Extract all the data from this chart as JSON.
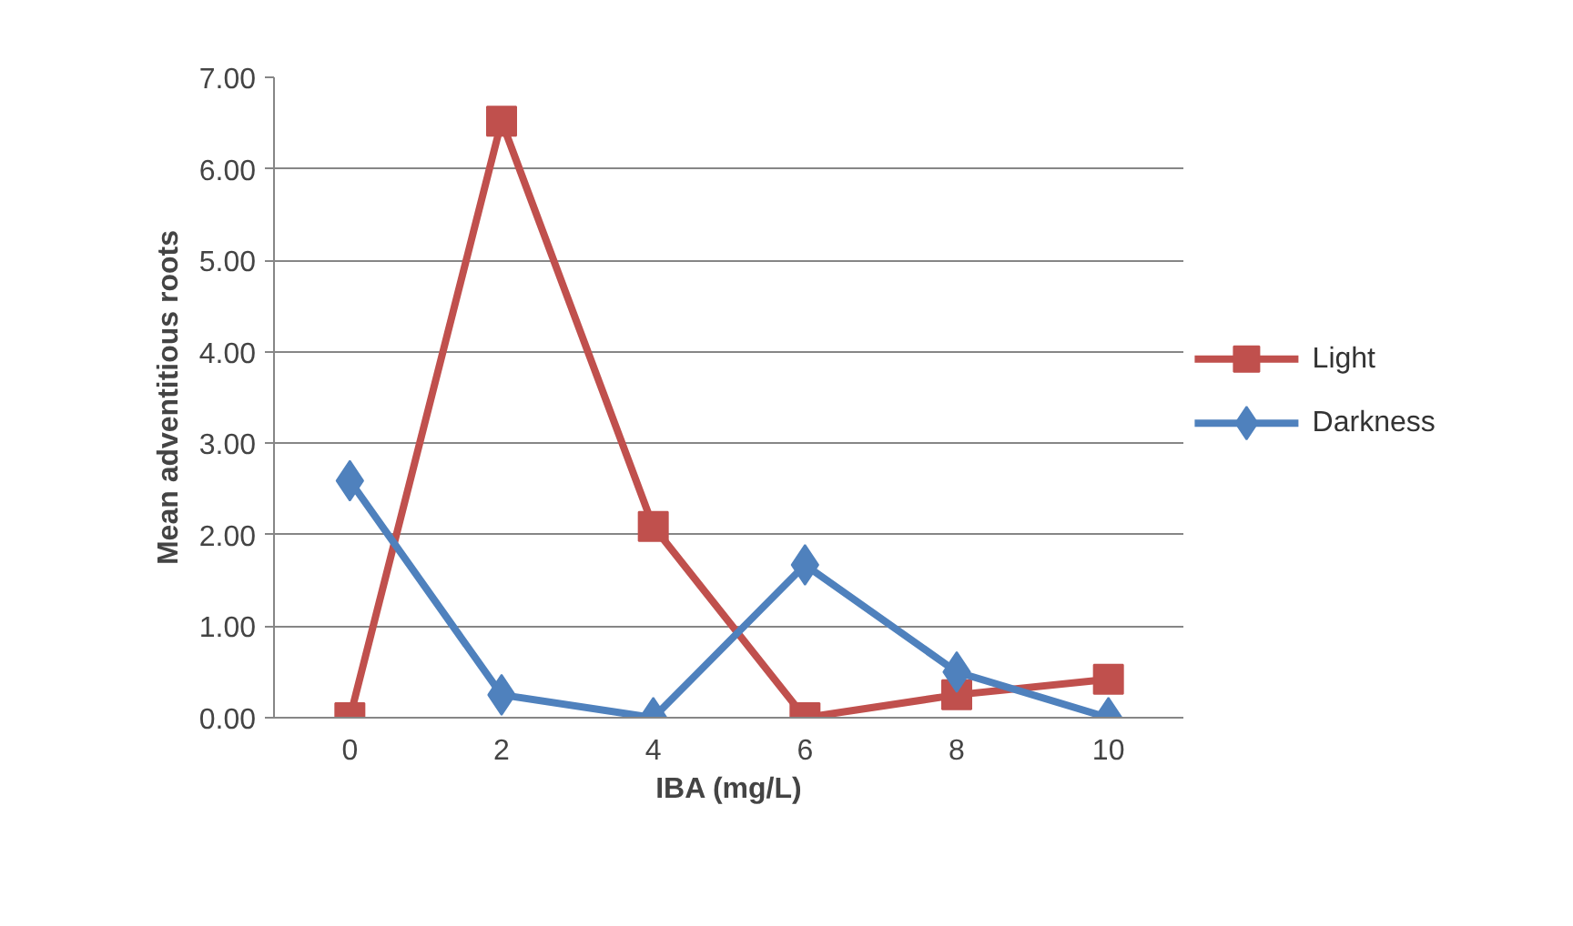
{
  "chart_data": {
    "type": "line",
    "xlabel": "IBA (mg/L)",
    "ylabel": "Mean adventitious roots",
    "categories": [
      "0",
      "2",
      "4",
      "6",
      "8",
      "10"
    ],
    "series": [
      {
        "name": "Light",
        "color": "#c0504d",
        "marker": "square",
        "values": [
          0,
          6.52,
          2.09,
          0,
          0.25,
          0.42
        ]
      },
      {
        "name": "Darkness",
        "color": "#4f81bd",
        "marker": "diamond",
        "values": [
          2.59,
          0.25,
          0,
          1.67,
          0.5,
          0
        ]
      }
    ],
    "ylim": [
      0,
      7
    ],
    "yticks": [
      {
        "value": 0,
        "label": "0.00"
      },
      {
        "value": 1,
        "label": "1.00"
      },
      {
        "value": 2,
        "label": "2.00"
      },
      {
        "value": 3,
        "label": "3.00"
      },
      {
        "value": 4,
        "label": "4.00"
      },
      {
        "value": 5,
        "label": "5.00"
      },
      {
        "value": 6,
        "label": "6.00"
      },
      {
        "value": 7,
        "label": "7.00"
      }
    ],
    "grid": "y",
    "legend": "right",
    "line_style": "solid"
  }
}
